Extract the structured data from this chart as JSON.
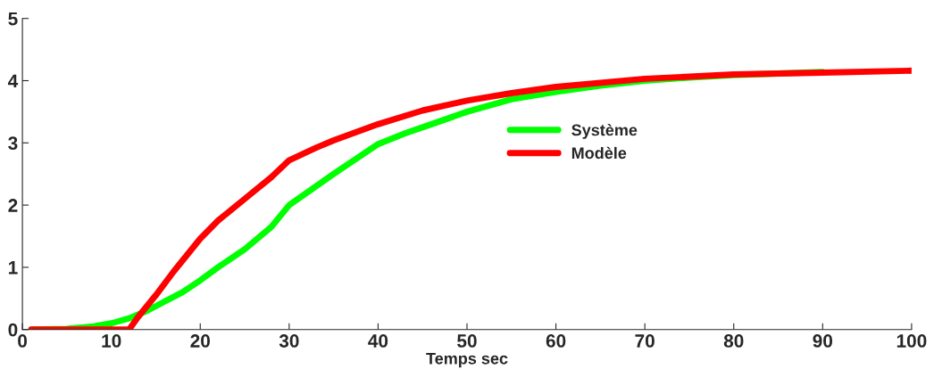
{
  "chart_data": {
    "type": "line",
    "xlabel": "Temps sec",
    "xlim": [
      0,
      100
    ],
    "xticks": [
      0,
      10,
      20,
      30,
      40,
      50,
      60,
      70,
      80,
      90,
      100
    ],
    "ylim": [
      0,
      5
    ],
    "yticks": [
      0,
      1,
      2,
      3,
      4,
      5
    ],
    "grid": false,
    "legend": "center",
    "marker": "none",
    "line_style": "solid",
    "series": [
      {
        "name": "Système",
        "color": "#00ff00",
        "x": [
          1,
          5,
          8,
          10,
          12,
          14,
          16,
          18,
          20,
          22,
          25,
          28,
          30,
          33,
          35,
          40,
          43,
          46,
          50,
          55,
          60,
          65,
          70,
          75,
          80,
          90
        ],
        "values": [
          0,
          0.01,
          0.05,
          0.1,
          0.18,
          0.3,
          0.45,
          0.6,
          0.79,
          1.0,
          1.29,
          1.65,
          2.0,
          2.3,
          2.5,
          2.98,
          3.15,
          3.3,
          3.5,
          3.7,
          3.82,
          3.92,
          4.0,
          4.05,
          4.09,
          4.14
        ]
      },
      {
        "name": "Modèle",
        "color": "#ff0000",
        "x": [
          1,
          12,
          13,
          15,
          17,
          20,
          22,
          25,
          28,
          30,
          33,
          35,
          40,
          45,
          50,
          55,
          60,
          70,
          80,
          90,
          100
        ],
        "values": [
          0,
          0,
          0.2,
          0.55,
          0.93,
          1.46,
          1.75,
          2.1,
          2.45,
          2.72,
          2.92,
          3.04,
          3.3,
          3.52,
          3.68,
          3.8,
          3.9,
          4.03,
          4.1,
          4.13,
          4.16
        ]
      }
    ]
  }
}
